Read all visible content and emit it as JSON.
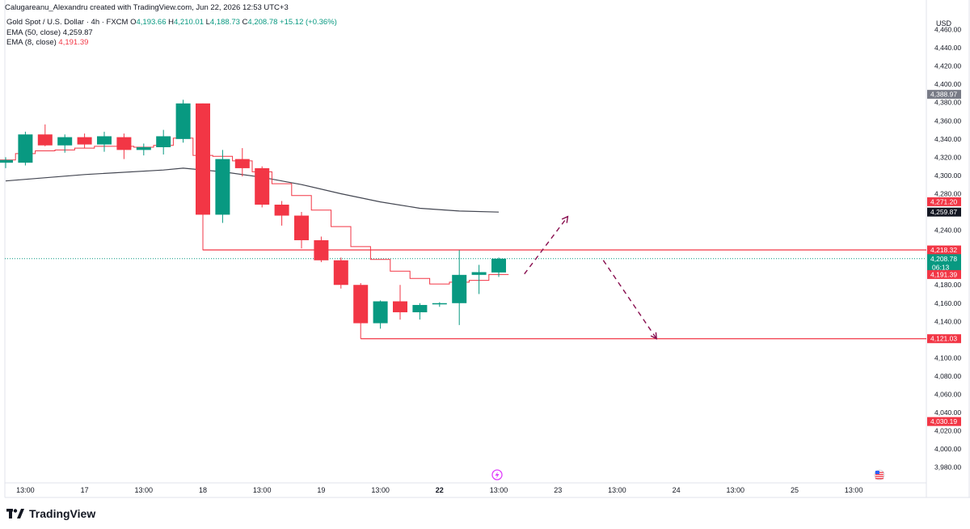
{
  "header": {
    "author_line": "Calugareanu_Alexandru created with TradingView.com, Jun 22, 2026 12:53 UTC+3"
  },
  "legend": {
    "symbol": "Gold Spot / U.S. Dollar · 4h · FXCM",
    "o_label": "O",
    "o_value": "4,193.66",
    "h_label": "H",
    "h_value": "4,210.01",
    "l_label": "L",
    "l_value": "4,188.73",
    "c_label": "C",
    "c_value": "4,208.78",
    "change": "+15.12 (+0.36%)",
    "ema50_label": "EMA (50, close)",
    "ema50_value": "4,259.87",
    "ema8_label": "EMA (8, close)",
    "ema8_value": "4,191.39"
  },
  "footer": {
    "brand": "TradingView"
  },
  "colors": {
    "up": "#089981",
    "down": "#f23645",
    "ema50": "#434651",
    "ema8": "#f23645",
    "grid": "#f0f3fa",
    "dashed": "#880e4f",
    "last_price_line": "#089981"
  },
  "chart_data": {
    "type": "candlestick",
    "currency_label": "USD",
    "timeframe": "4h",
    "ylim": [
      3970,
      4480
    ],
    "y_ticks": [
      "4,460.00",
      "4,440.00",
      "4,420.00",
      "4,400.00",
      "4,380.00",
      "4,360.00",
      "4,340.00",
      "4,320.00",
      "4,300.00",
      "4,280.00",
      "4,240.00",
      "4,180.00",
      "4,160.00",
      "4,140.00",
      "4,100.00",
      "4,080.00",
      "4,060.00",
      "4,040.00",
      "4,020.00",
      "4,000.00",
      "3,980.00"
    ],
    "y_tick_values": [
      4460,
      4440,
      4420,
      4400,
      4380,
      4360,
      4340,
      4320,
      4300,
      4280,
      4240,
      4180,
      4160,
      4140,
      4100,
      4080,
      4060,
      4040,
      4020,
      4000,
      3980
    ],
    "x_ticks": [
      {
        "label": "13:00",
        "i": 1,
        "bold": false
      },
      {
        "label": "17",
        "i": 4,
        "bold": false
      },
      {
        "label": "13:00",
        "i": 7,
        "bold": false
      },
      {
        "label": "18",
        "i": 10,
        "bold": false
      },
      {
        "label": "13:00",
        "i": 13,
        "bold": false
      },
      {
        "label": "19",
        "i": 16,
        "bold": false
      },
      {
        "label": "13:00",
        "i": 19,
        "bold": false
      },
      {
        "label": "22",
        "i": 22,
        "bold": true
      },
      {
        "label": "13:00",
        "i": 25,
        "bold": false
      },
      {
        "label": "23",
        "i": 28,
        "bold": false
      },
      {
        "label": "13:00",
        "i": 31,
        "bold": false
      },
      {
        "label": "24",
        "i": 34,
        "bold": false
      },
      {
        "label": "13:00",
        "i": 37,
        "bold": false
      },
      {
        "label": "25",
        "i": 40,
        "bold": false
      },
      {
        "label": "13:00",
        "i": 43,
        "bold": false
      }
    ],
    "candles": [
      {
        "o": 4314,
        "h": 4320,
        "l": 4308,
        "c": 4317
      },
      {
        "o": 4314,
        "h": 4348,
        "l": 4311,
        "c": 4345
      },
      {
        "o": 4345,
        "h": 4356,
        "l": 4332,
        "c": 4333
      },
      {
        "o": 4333,
        "h": 4345,
        "l": 4325,
        "c": 4342
      },
      {
        "o": 4342,
        "h": 4346,
        "l": 4330,
        "c": 4334
      },
      {
        "o": 4334,
        "h": 4348,
        "l": 4326,
        "c": 4343
      },
      {
        "o": 4342,
        "h": 4346,
        "l": 4318,
        "c": 4328
      },
      {
        "o": 4328,
        "h": 4335,
        "l": 4322,
        "c": 4331
      },
      {
        "o": 4331,
        "h": 4350,
        "l": 4323,
        "c": 4343
      },
      {
        "o": 4340,
        "h": 4383,
        "l": 4336,
        "c": 4379
      },
      {
        "o": 4379,
        "h": 4379,
        "l": 4218,
        "c": 4257
      },
      {
        "o": 4257,
        "h": 4328,
        "l": 4248,
        "c": 4318
      },
      {
        "o": 4318,
        "h": 4330,
        "l": 4299,
        "c": 4308
      },
      {
        "o": 4308,
        "h": 4310,
        "l": 4265,
        "c": 4268
      },
      {
        "o": 4268,
        "h": 4272,
        "l": 4245,
        "c": 4256
      },
      {
        "o": 4256,
        "h": 4260,
        "l": 4220,
        "c": 4229
      },
      {
        "o": 4229,
        "h": 4233,
        "l": 4205,
        "c": 4207
      },
      {
        "o": 4207,
        "h": 4210,
        "l": 4176,
        "c": 4180
      },
      {
        "o": 4180,
        "h": 4182,
        "l": 4121,
        "c": 4138
      },
      {
        "o": 4138,
        "h": 4163,
        "l": 4132,
        "c": 4162
      },
      {
        "o": 4162,
        "h": 4180,
        "l": 4142,
        "c": 4150
      },
      {
        "o": 4150,
        "h": 4160,
        "l": 4142,
        "c": 4158
      },
      {
        "o": 4159,
        "h": 4161,
        "l": 4156,
        "c": 4160
      },
      {
        "o": 4160,
        "h": 4218,
        "l": 4136,
        "c": 4191
      },
      {
        "o": 4191,
        "h": 4202,
        "l": 4170,
        "c": 4194
      },
      {
        "o": 4193.66,
        "h": 4210.01,
        "l": 4188.73,
        "c": 4208.78
      }
    ],
    "ema50": [
      [
        0,
        4294
      ],
      [
        4,
        4301
      ],
      [
        8,
        4306
      ],
      [
        9,
        4308
      ],
      [
        11,
        4304
      ],
      [
        13,
        4298
      ],
      [
        15,
        4290
      ],
      [
        17,
        4280
      ],
      [
        19,
        4271
      ],
      [
        21,
        4264
      ],
      [
        23,
        4261
      ],
      [
        25,
        4259.87
      ]
    ],
    "ema8_steps": [
      4317,
      4324,
      4327,
      4328,
      4330,
      4332,
      4332,
      4331,
      4333,
      4341,
      4322,
      4321,
      4316,
      4304,
      4291,
      4278,
      4262,
      4244,
      4222,
      4208,
      4195,
      4187,
      4181,
      4183,
      4185,
      4191.39
    ],
    "horizontal_lines": [
      {
        "price": 4218.32,
        "from_i": 10,
        "color": "#f23645"
      },
      {
        "price": 4121.03,
        "from_i": 18,
        "color": "#f23645"
      }
    ],
    "last_price": 4208.78,
    "projection_arrows": [
      {
        "from": [
          26.3,
          4192
        ],
        "to": [
          28.5,
          4255
        ]
      },
      {
        "from": [
          30.3,
          4207
        ],
        "to": [
          33.0,
          4121
        ]
      }
    ],
    "price_labels": [
      {
        "text": "4,388.97",
        "price": 4388.97,
        "bg": "#787b86",
        "fg": "#ffffff"
      },
      {
        "text": "4,271.20",
        "price": 4271.2,
        "bg": "#f23645",
        "fg": "#ffffff"
      },
      {
        "text": "4,259.87",
        "price": 4259.87,
        "bg": "#131722",
        "fg": "#ffffff"
      },
      {
        "text": "4,218.32",
        "price": 4218.32,
        "bg": "#f23645",
        "fg": "#ffffff"
      },
      {
        "text": "4,208.78",
        "price": 4208.78,
        "bg": "#089981",
        "fg": "#ffffff",
        "sub": "06:13"
      },
      {
        "text": "4,191.39",
        "price": 4191.39,
        "bg": "#f23645",
        "fg": "#ffffff"
      },
      {
        "text": "4,121.03",
        "price": 4121.03,
        "bg": "#f23645",
        "fg": "#ffffff"
      },
      {
        "text": "4,030.19",
        "price": 4030.19,
        "bg": "#f23645",
        "fg": "#ffffff"
      }
    ]
  }
}
